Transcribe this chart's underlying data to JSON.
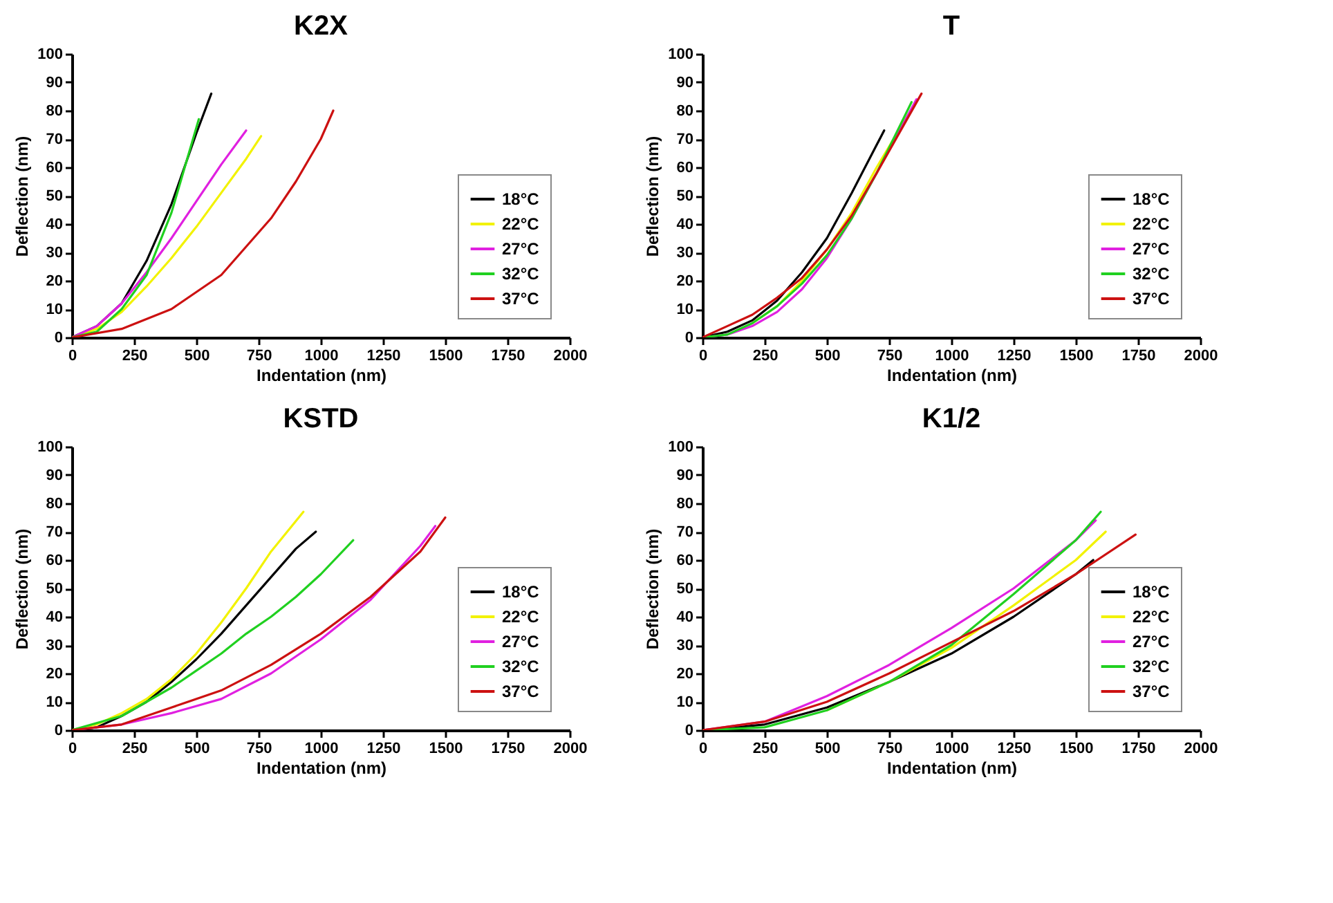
{
  "chart_data": [
    {
      "type": "line",
      "title": "K2X",
      "xlabel": "Indentation (nm)",
      "ylabel": "Deflection (nm)",
      "xlim": [
        0,
        2000
      ],
      "ylim": [
        0,
        100
      ],
      "xticks": [
        0,
        250,
        500,
        750,
        1000,
        1250,
        1500,
        1750,
        2000
      ],
      "yticks": [
        0,
        10,
        20,
        30,
        40,
        50,
        60,
        70,
        80,
        90,
        100
      ],
      "grid": false,
      "legend": "bottom right",
      "series": [
        {
          "name": "18°C",
          "color": "#000000",
          "x": [
            0,
            100,
            200,
            300,
            400,
            500,
            560
          ],
          "values": [
            0,
            4,
            12,
            27,
            47,
            72,
            86
          ]
        },
        {
          "name": "22°C",
          "color": "#f2f200",
          "x": [
            0,
            100,
            200,
            300,
            400,
            500,
            600,
            700,
            760
          ],
          "values": [
            0,
            3,
            9,
            18,
            28,
            39,
            51,
            63,
            71
          ]
        },
        {
          "name": "27°C",
          "color": "#e020e0",
          "x": [
            0,
            100,
            200,
            300,
            400,
            500,
            600,
            700
          ],
          "values": [
            0,
            4,
            12,
            23,
            35,
            48,
            61,
            73
          ]
        },
        {
          "name": "32°C",
          "color": "#20d020",
          "x": [
            0,
            100,
            200,
            300,
            400,
            510
          ],
          "values": [
            0,
            2,
            10,
            22,
            44,
            77
          ]
        },
        {
          "name": "37°C",
          "color": "#cc1111",
          "x": [
            0,
            200,
            400,
            600,
            800,
            900,
            1000,
            1050
          ],
          "values": [
            0,
            3,
            10,
            22,
            42,
            55,
            70,
            80
          ]
        }
      ]
    },
    {
      "type": "line",
      "title": "T",
      "xlabel": "Indentation (nm)",
      "ylabel": "Deflection (nm)",
      "xlim": [
        0,
        2000
      ],
      "ylim": [
        0,
        100
      ],
      "xticks": [
        0,
        250,
        500,
        750,
        1000,
        1250,
        1500,
        1750,
        2000
      ],
      "yticks": [
        0,
        10,
        20,
        30,
        40,
        50,
        60,
        70,
        80,
        90,
        100
      ],
      "grid": false,
      "legend": "bottom right",
      "series": [
        {
          "name": "18°C",
          "color": "#000000",
          "x": [
            0,
            100,
            200,
            300,
            400,
            500,
            600,
            730
          ],
          "values": [
            0,
            2,
            6,
            13,
            23,
            35,
            51,
            73
          ]
        },
        {
          "name": "22°C",
          "color": "#f2f200",
          "x": [
            200,
            300,
            400,
            500,
            600,
            700,
            850
          ],
          "values": [
            5,
            11,
            20,
            31,
            44,
            60,
            82
          ]
        },
        {
          "name": "27°C",
          "color": "#e020e0",
          "x": [
            0,
            100,
            200,
            300,
            400,
            500,
            600,
            700,
            860
          ],
          "values": [
            0,
            1,
            4,
            9,
            17,
            28,
            42,
            58,
            84
          ]
        },
        {
          "name": "32°C",
          "color": "#20d020",
          "x": [
            0,
            100,
            200,
            300,
            400,
            500,
            600,
            700,
            840
          ],
          "values": [
            0,
            1,
            5,
            11,
            19,
            29,
            42,
            58,
            83
          ]
        },
        {
          "name": "37°C",
          "color": "#cc1111",
          "x": [
            0,
            100,
            200,
            300,
            400,
            500,
            600,
            700,
            880
          ],
          "values": [
            0,
            4,
            8,
            14,
            21,
            31,
            43,
            58,
            86
          ]
        }
      ]
    },
    {
      "type": "line",
      "title": "KSTD",
      "xlabel": "Indentation (nm)",
      "ylabel": "Deflection (nm)",
      "xlim": [
        0,
        2000
      ],
      "ylim": [
        0,
        100
      ],
      "xticks": [
        0,
        250,
        500,
        750,
        1000,
        1250,
        1500,
        1750,
        2000
      ],
      "yticks": [
        0,
        10,
        20,
        30,
        40,
        50,
        60,
        70,
        80,
        90,
        100
      ],
      "grid": false,
      "legend": "bottom right",
      "series": [
        {
          "name": "18°C",
          "color": "#000000",
          "x": [
            0,
            100,
            200,
            300,
            400,
            500,
            600,
            700,
            800,
            900,
            980
          ],
          "values": [
            0,
            1,
            5,
            10,
            17,
            25,
            34,
            44,
            54,
            64,
            70
          ]
        },
        {
          "name": "22°C",
          "color": "#f2f200",
          "x": [
            0,
            100,
            200,
            300,
            400,
            500,
            600,
            700,
            800,
            930
          ],
          "values": [
            0,
            2,
            6,
            11,
            18,
            27,
            38,
            50,
            63,
            77
          ]
        },
        {
          "name": "27°C",
          "color": "#e020e0",
          "x": [
            0,
            200,
            400,
            600,
            800,
            1000,
            1200,
            1400,
            1460
          ],
          "values": [
            0,
            2,
            6,
            11,
            20,
            32,
            46,
            65,
            72
          ]
        },
        {
          "name": "32°C",
          "color": "#20d020",
          "x": [
            0,
            200,
            300,
            400,
            500,
            600,
            700,
            800,
            900,
            1000,
            1130
          ],
          "values": [
            0,
            5,
            10,
            15,
            21,
            27,
            34,
            40,
            47,
            55,
            67
          ]
        },
        {
          "name": "37°C",
          "color": "#cc1111",
          "x": [
            0,
            200,
            400,
            600,
            800,
            1000,
            1200,
            1400,
            1500
          ],
          "values": [
            0,
            2,
            8,
            14,
            23,
            34,
            47,
            63,
            75
          ]
        }
      ]
    },
    {
      "type": "line",
      "title": "K1/2",
      "xlabel": "Indentation (nm)",
      "ylabel": "Deflection (nm)",
      "xlim": [
        0,
        2000
      ],
      "ylim": [
        0,
        100
      ],
      "xticks": [
        0,
        250,
        500,
        750,
        1000,
        1250,
        1500,
        1750,
        2000
      ],
      "yticks": [
        0,
        10,
        20,
        30,
        40,
        50,
        60,
        70,
        80,
        90,
        100
      ],
      "grid": false,
      "legend": "bottom right",
      "series": [
        {
          "name": "18°C",
          "color": "#000000",
          "x": [
            0,
            250,
            500,
            750,
            1000,
            1250,
            1500,
            1570
          ],
          "values": [
            0,
            2,
            8,
            17,
            27,
            40,
            55,
            60
          ]
        },
        {
          "name": "22°C",
          "color": "#f2f200",
          "x": [
            500,
            750,
            1000,
            1250,
            1500,
            1620
          ],
          "values": [
            7,
            17,
            29,
            44,
            60,
            70
          ]
        },
        {
          "name": "27°C",
          "color": "#e020e0",
          "x": [
            0,
            250,
            500,
            750,
            1000,
            1250,
            1500,
            1580
          ],
          "values": [
            0,
            3,
            12,
            23,
            36,
            50,
            67,
            74
          ]
        },
        {
          "name": "32°C",
          "color": "#20d020",
          "x": [
            0,
            250,
            500,
            750,
            1000,
            1250,
            1500,
            1600
          ],
          "values": [
            0,
            1,
            7,
            17,
            30,
            48,
            67,
            77
          ]
        },
        {
          "name": "37°C",
          "color": "#cc1111",
          "x": [
            0,
            250,
            500,
            750,
            1000,
            1250,
            1500,
            1740
          ],
          "values": [
            0,
            3,
            10,
            20,
            31,
            42,
            55,
            69
          ]
        }
      ]
    }
  ]
}
